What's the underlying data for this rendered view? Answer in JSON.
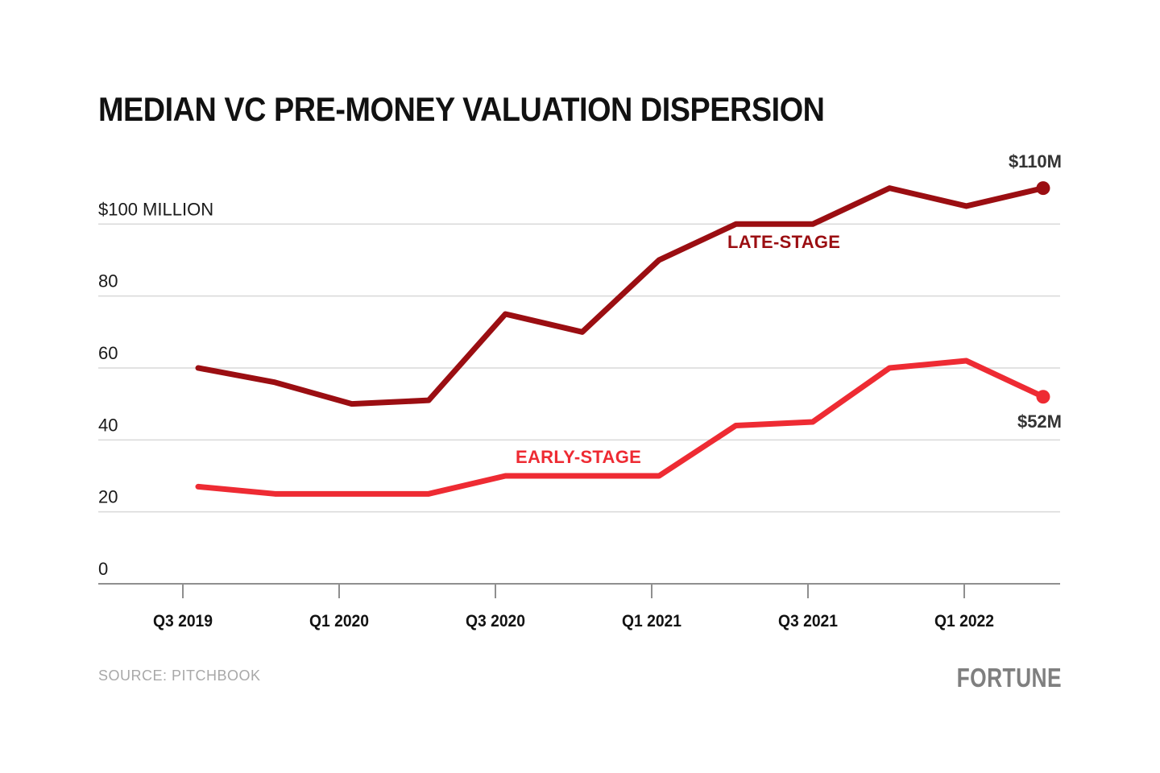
{
  "header": {
    "title": "MEDIAN VC PRE-MONEY VALUATION DISPERSION"
  },
  "source": {
    "label": "SOURCE: PITCHBOOK"
  },
  "brand": {
    "logo_text": "FORTUNE"
  },
  "chart_data": {
    "type": "line",
    "title": "MEDIAN VC PRE-MONEY VALUATION DISPERSION",
    "unit": "USD millions",
    "x": [
      "Q3 2019",
      "Q4 2019",
      "Q1 2020",
      "Q2 2020",
      "Q3 2020",
      "Q4 2020",
      "Q1 2021",
      "Q2 2021",
      "Q3 2021",
      "Q4 2021",
      "Q1 2022",
      "Q2 2022"
    ],
    "x_tick_labels": [
      "Q3 2019",
      "Q1 2020",
      "Q3 2020",
      "Q1 2021",
      "Q3 2021",
      "Q1 2022"
    ],
    "y_ticks": [
      0,
      20,
      40,
      60,
      80,
      100
    ],
    "y_tick_labels": [
      "0",
      "20",
      "40",
      "60",
      "80",
      "$100 MILLION"
    ],
    "ylim": [
      0,
      117
    ],
    "grid": "horizontal",
    "grid_color": "#d9d9d9",
    "axis_color": "#8f8f8f",
    "legend_position": "inline-labels",
    "series": [
      {
        "name": "Late-stage",
        "label": "LATE-STAGE",
        "end_label": "$110M",
        "color": "#9B0E12",
        "values": [
          60,
          56,
          50,
          51,
          75,
          70,
          90,
          100,
          100,
          110,
          105,
          110
        ]
      },
      {
        "name": "Early-stage",
        "label": "EARLY-STAGE",
        "end_label": "$52M",
        "color": "#EE2B33",
        "values": [
          27,
          25,
          25,
          25,
          30,
          30,
          30,
          44,
          45,
          60,
          62,
          52
        ]
      }
    ]
  }
}
